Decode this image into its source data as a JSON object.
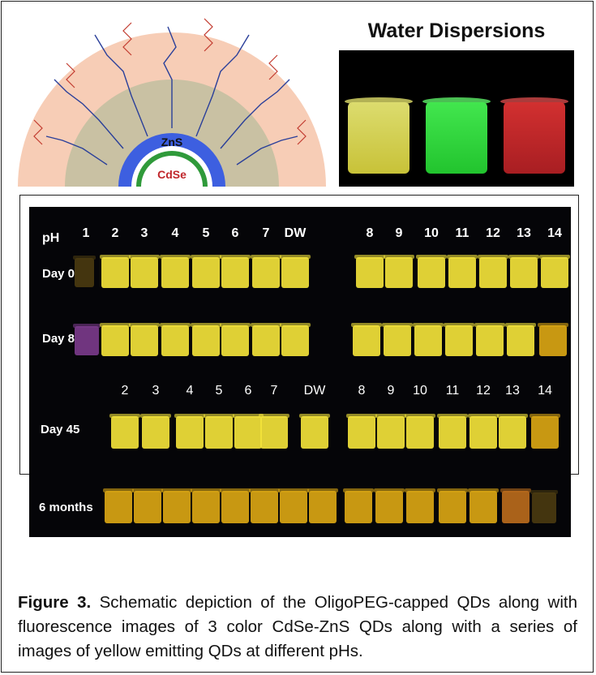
{
  "schematic": {
    "shell_label": "ZnS",
    "core_label": "CdSe",
    "colors": {
      "outer_layer": "#f7cdb6",
      "ligand_layer": "#c9c1a3",
      "shell": "#3d5fe0",
      "core": "#2f9a3a",
      "ligand_blue": "#2a3f9a",
      "ligand_red": "#c23b2f"
    }
  },
  "water_dispersions": {
    "title": "Water Dispersions",
    "vials": [
      {
        "name": "yellow",
        "color": "#d8d64a"
      },
      {
        "name": "green",
        "color": "#2fdc3c"
      },
      {
        "name": "red",
        "color": "#c8282a"
      }
    ]
  },
  "ph_series": {
    "ph_header": "pH",
    "top_columns_left": [
      "1",
      "2",
      "3",
      "4",
      "5",
      "6",
      "7",
      "DW"
    ],
    "top_columns_right": [
      "8",
      "9",
      "10",
      "11",
      "12",
      "13",
      "14"
    ],
    "mid_columns_left": [
      "2",
      "3",
      "4",
      "5",
      "6",
      "7",
      "DW"
    ],
    "mid_columns_right": [
      "8",
      "9",
      "10",
      "11",
      "12",
      "13",
      "14"
    ],
    "rows": [
      "Day 0",
      "Day 8",
      "Day 45",
      "6 months"
    ],
    "colors": {
      "bright_yellow": "#f2e23a",
      "amber": "#d9a514",
      "orange": "#b86a1c",
      "dim": "#4a3a10"
    }
  },
  "caption": {
    "label": "Figure 3.",
    "text": " Schematic depiction of the OligoPEG-capped QDs along with fluorescence images of 3 color CdSe-ZnS QDs along with a series of images of yellow emitting QDs at different pHs."
  }
}
